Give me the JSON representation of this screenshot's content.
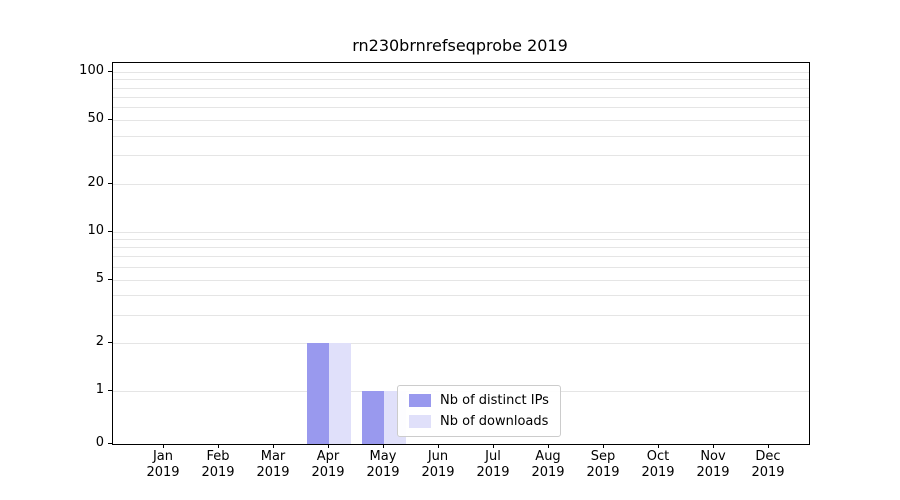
{
  "chart_data": {
    "type": "bar",
    "title": "rn230brnrefseqprobe 2019",
    "categories": [
      "Jan 2019",
      "Feb 2019",
      "Mar 2019",
      "Apr 2019",
      "May 2019",
      "Jun 2019",
      "Jul 2019",
      "Aug 2019",
      "Sep 2019",
      "Oct 2019",
      "Nov 2019",
      "Dec 2019"
    ],
    "series": [
      {
        "name": "Nb of distinct IPs",
        "color": "#9999ee",
        "values": [
          0,
          0,
          0,
          2,
          1,
          0,
          0,
          0,
          0,
          0,
          0,
          0
        ]
      },
      {
        "name": "Nb of downloads",
        "color": "#e0e0fa",
        "values": [
          0,
          0,
          0,
          2,
          1,
          0,
          0,
          0,
          0,
          0,
          0,
          0
        ]
      }
    ],
    "xlabel": "",
    "ylabel": "",
    "yscale": "symlog",
    "y_ticks": [
      0,
      1,
      2,
      5,
      10,
      20,
      50,
      100
    ],
    "minor_gridline_values": [
      1,
      2,
      3,
      4,
      5,
      6,
      7,
      8,
      9,
      10,
      20,
      30,
      40,
      50,
      60,
      70,
      80,
      90,
      100
    ],
    "ylim": [
      0,
      114
    ],
    "grid": "horizontal",
    "legend_position": "lower right inside plot"
  }
}
